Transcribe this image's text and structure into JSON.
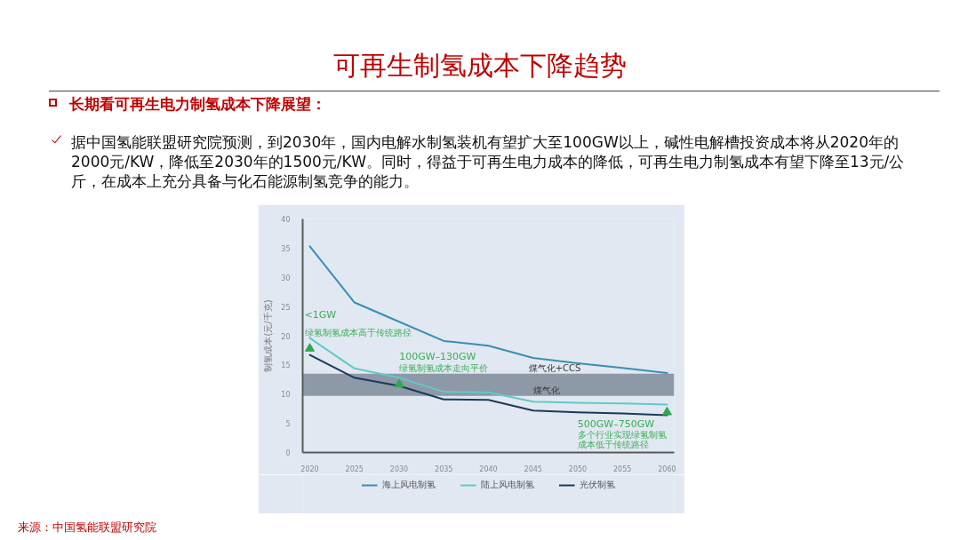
{
  "chart_data": {
    "type": "line",
    "title": "可再生制氢成本下降趋势",
    "subtitle": "长期看可再生电力制氢成本下降展望：",
    "ylabel": "制氢成本(元/千克)",
    "x": [
      2020,
      2025,
      2030,
      2035,
      2040,
      2045,
      2050,
      2055,
      2060
    ],
    "series": [
      {
        "name": "海上风电制氢",
        "color": "#3a8eb6",
        "values": [
          35.3,
          25.7,
          22.4,
          19.1,
          18.3,
          16.2,
          15.3,
          14.5,
          13.6
        ]
      },
      {
        "name": "陆上风电制氢",
        "color": "#63c8c8",
        "values": [
          19.6,
          14.4,
          12.8,
          10.4,
          10.3,
          8.7,
          8.5,
          8.4,
          8.2
        ]
      },
      {
        "name": "光伏制氢",
        "color": "#1c3a5a",
        "values": [
          16.7,
          12.8,
          11.4,
          9.1,
          9.0,
          7.2,
          6.9,
          6.7,
          6.4
        ]
      },
      {
        "type": "scatter",
        "color": "#2fa84f",
        "marker": "triangle",
        "x": [
          2020,
          2030,
          2060
        ],
        "values": [
          17.8,
          11.7,
          6.9
        ]
      }
    ],
    "xlim": [
      2019.2,
      2060.8
    ],
    "ylim": [
      0,
      40
    ],
    "xticks": [
      2020,
      2025,
      2030,
      2035,
      2040,
      2045,
      2050,
      2055,
      2060
    ],
    "yticks": [
      0,
      5,
      10,
      15,
      20,
      25,
      30,
      35,
      40
    ],
    "bands": [
      {
        "axis": "y",
        "from": 9.7,
        "to": 13.5,
        "color": "#8d99a6"
      }
    ],
    "legend": "bottom",
    "annotations": [
      "据中国氢能联盟研究院预测，到2030年，国内电解水制氢装机有望扩大至100GW以上，碱性电解槽投资成本将从2020年的2000元/KW，降低至2030年的1500元/KW。同时，得益于可再生电力成本的降低，可再生电力制氢成本有望下降至13元/公斤，在成本上充分具备与化石能源制氢竞争的能力。",
      "<1GW",
      "绿氢制氢成本高于传统路径",
      "100GW–130GW",
      "绿氢制氢成本走向平价",
      "500GW–750GW",
      "多个行业实现绿氢制氢",
      "成本低于传统路径",
      {
        "text": "煤气化+CCS",
        "x": 2044.5,
        "y": 13.5
      },
      {
        "text": "煤气化",
        "x": 2045,
        "y": 9.7
      },
      "来源：中国氢能联盟研究院"
    ]
  }
}
